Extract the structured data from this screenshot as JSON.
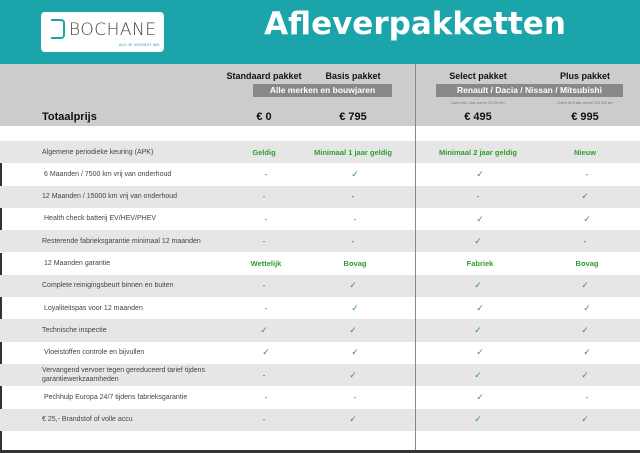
{
  "header": {
    "logo_text": "BOCHANE",
    "logo_tagline": "ALS JE VOORUIT WIL",
    "title": "Afleverpakketten",
    "color": "#1ba5ab"
  },
  "packages": [
    {
      "name": "Standaard pakket",
      "price": "€ 0"
    },
    {
      "name": "Basis pakket",
      "price": "€ 795"
    },
    {
      "name": "Select pakket",
      "price": "€ 495",
      "note": "Auto's tot 1 jaar oud en 20.000 km"
    },
    {
      "name": "Plus pakket",
      "price": "€ 995",
      "note": "Auto's tot 5 jaar oud en 100.000 km"
    }
  ],
  "groups": [
    "Alle merken en bouwjaren",
    "Renault / Dacia / Nissan / Mitsubishi"
  ],
  "total_label": "Totaalprijs",
  "rows": [
    {
      "label": "Algemene periodieke keuring (APK)",
      "values": [
        "Geldig",
        "Minimaal 1 jaar geldig",
        "Minimaal 2 jaar geldig",
        "Nieuw"
      ]
    },
    {
      "label": "6 Maanden / 7500 km vrij van onderhoud",
      "values": [
        "-",
        "✓",
        "✓",
        "-"
      ]
    },
    {
      "label": "12 Maanden / 15000 km vrij van onderhoud",
      "values": [
        "-",
        "-",
        "-",
        "✓"
      ]
    },
    {
      "label": "Health check batterij EV/HEV/PHEV",
      "values": [
        "-",
        "-",
        "✓",
        "✓"
      ]
    },
    {
      "label": "Resterende fabrieksgarantie minimaal 12 maanden",
      "values": [
        "-",
        "-",
        "✓",
        "-"
      ]
    },
    {
      "label": "12 Maanden  garantie",
      "values": [
        "Wettelijk",
        "Bovag",
        "Fabriek",
        "Bovag"
      ]
    },
    {
      "label": "Complete reinigingsbeurt binnen en buiten",
      "values": [
        "-",
        "✓",
        "✓",
        "✓"
      ]
    },
    {
      "label": "Loyaliteitspas voor 12 maanden",
      "values": [
        "-",
        "✓",
        "✓",
        "✓"
      ]
    },
    {
      "label": "Technische inspectie",
      "values": [
        "✓",
        "✓",
        "✓",
        "✓"
      ]
    },
    {
      "label": "Vloeistoffen controle en bijvullen",
      "values": [
        "✓",
        "✓",
        "✓",
        "✓"
      ]
    },
    {
      "label": "Vervangend vervoer tegen gereduceerd tarief tijdens garantiewerkzaamheden",
      "values": [
        "-",
        "✓",
        "✓",
        "✓"
      ]
    },
    {
      "label": "Pechhulp Europa 24/7 tijdens fabrieksgarantie",
      "values": [
        "-",
        "-",
        "✓",
        "-"
      ]
    },
    {
      "label": "€ 25,- Brandstof of  volle accu",
      "values": [
        "-",
        "✓",
        "✓",
        "✓"
      ]
    }
  ]
}
